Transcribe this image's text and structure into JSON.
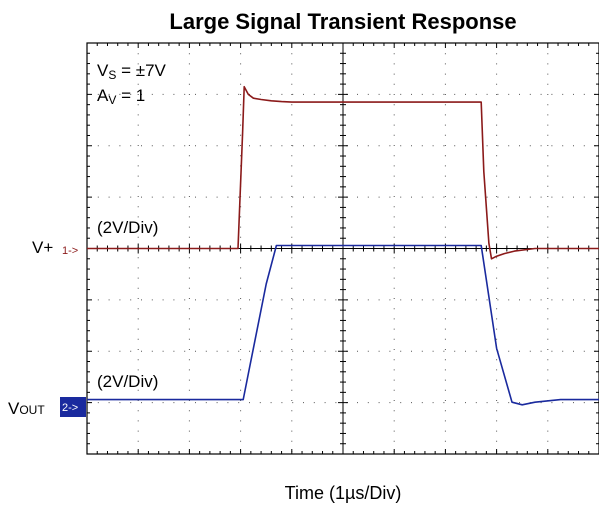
{
  "chart_data": {
    "type": "line",
    "title": "Large Signal Transient Response",
    "xlabel": "Time (1µs/Div)",
    "conditions": {
      "vs_prefix": "V",
      "vs_sub": "S",
      "vs_value": " = ±7V",
      "av_prefix": "A",
      "av_sub": "V",
      "av_value": " = 1"
    },
    "grid": true,
    "divisions": {
      "x": 10,
      "y": 8
    },
    "series": [
      {
        "name": "V+",
        "label_main": "V+",
        "marker": "1->",
        "scale": "(2V/Div)",
        "color": "#8b1a1a",
        "x": [
          0,
          5.9,
          6.08,
          6.14,
          6.3,
          6.5,
          6.8,
          7.2,
          7.6,
          8.0,
          9.0,
          10.0,
          11.0,
          12.0,
          13.0,
          14.0,
          15.4,
          15.5,
          15.7,
          15.8,
          16.0,
          16.3,
          16.7,
          17.5,
          18.5,
          20.0
        ],
        "y": [
          0,
          0,
          4.5,
          6.3,
          6.0,
          5.85,
          5.8,
          5.75,
          5.72,
          5.7,
          5.7,
          5.7,
          5.7,
          5.7,
          5.7,
          5.7,
          5.7,
          3.0,
          0.2,
          -0.4,
          -0.3,
          -0.2,
          -0.1,
          0,
          0,
          0
        ]
      },
      {
        "name": "VOUT",
        "label_main": "V",
        "label_sub": "OUT",
        "marker": "2->",
        "scale": "(2V/Div)",
        "color": "#1a2a9e",
        "x": [
          0,
          6.1,
          6.3,
          7.0,
          7.4,
          8.0,
          9.0,
          10.0,
          11.0,
          12.0,
          13.0,
          14.0,
          15.4,
          16.0,
          16.6,
          17.0,
          17.5,
          18.5,
          20.0
        ],
        "y": [
          0,
          0,
          1.0,
          4.5,
          6.0,
          6.0,
          6.0,
          6.0,
          6.0,
          6.0,
          6.0,
          6.0,
          6.0,
          2.0,
          -0.1,
          -0.2,
          -0.1,
          0,
          0
        ]
      }
    ]
  }
}
